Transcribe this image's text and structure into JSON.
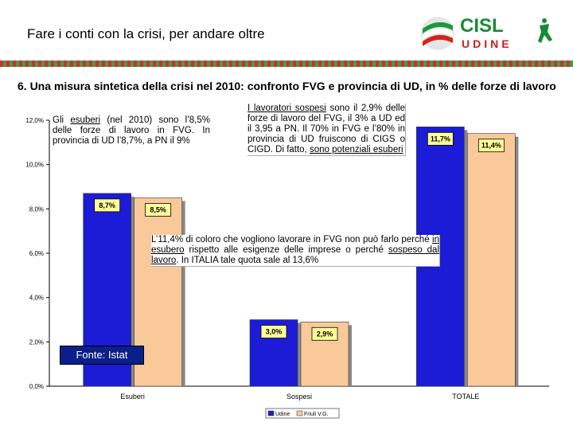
{
  "header": {
    "title": "Fare i conti con la crisi, per andare oltre",
    "subtitle": "6. Una misura sintetica della crisi nel 2010: confronto FVG e provincia di UD, in % delle forze di lavoro"
  },
  "logo": {
    "line1": "CISL",
    "line2": "UDINE"
  },
  "notes": {
    "esuberi": {
      "pre": "Gli ",
      "u1": "esuberi",
      "post": " (nel 2010) sono l’8,5% delle forze di lavoro in FVG. In provincia di UD l’8,7%, a PN il 9%"
    },
    "sospesi": {
      "u1": "I lavoratori sospesi",
      "mid": " sono il 2,9% delle forze di lavoro del FVG, il 3% a UD ed il 3,95 a PN. Il 70% in FVG e l’80% in provincia di UD fruiscono di CIGS o CIGD. Di fatto, ",
      "u2": "sono potenziali esuberi"
    },
    "totale": {
      "pre": "L’11,4% di coloro che vogliono lavorare in FVG non può farlo perché ",
      "u1": "in esubero",
      "mid": " rispetto alle esigenze delle imprese o perché ",
      "u2": "sospeso dal lavoro",
      "post": ". In ITALIA tale quota sale al 13,6%"
    }
  },
  "source": "Fonte: Istat",
  "chart_data": {
    "type": "bar",
    "categories": [
      "Esuberi",
      "Sospesi",
      "TOTALE"
    ],
    "series": [
      {
        "name": "Udine",
        "values": [
          8.7,
          3.0,
          11.7
        ],
        "labels": [
          "8,7%",
          "3,0%",
          "11,7%"
        ],
        "color": "#1c1cd6"
      },
      {
        "name": "Friuli V.G.",
        "values": [
          8.5,
          2.9,
          11.4
        ],
        "labels": [
          "8,5%",
          "2,9%",
          "11,4%"
        ],
        "color": "#f9c99a"
      }
    ],
    "yticks": [
      0,
      2,
      4,
      6,
      8,
      10,
      12
    ],
    "ytick_labels": [
      "0,0%",
      "2,0%",
      "4,0%",
      "6,0%",
      "8,0%",
      "10,0%",
      "12,0%"
    ],
    "ylim": [
      0,
      12
    ],
    "legend_position": "bottom",
    "label_box_color": "#ffff99"
  }
}
